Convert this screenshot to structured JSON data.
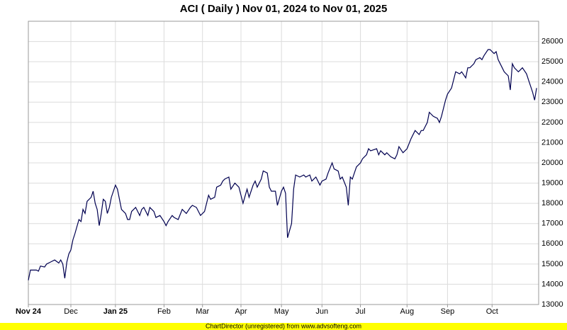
{
  "chart_data": {
    "type": "line",
    "title": "ACI ( Daily ) Nov 01, 2024 to Nov 01, 2025",
    "footer": "ChartDirector (unregistered) from www.advsofteng.com",
    "x": [
      0,
      1,
      4,
      5,
      6,
      8,
      9,
      11,
      13,
      15,
      16,
      17,
      18,
      19,
      20,
      21,
      22,
      23,
      25,
      26,
      27,
      28,
      29,
      31,
      32,
      33,
      34,
      35,
      36,
      37,
      38,
      39,
      40,
      41,
      43,
      44,
      46,
      48,
      49,
      50,
      51,
      53,
      54,
      55,
      56,
      57,
      59,
      60,
      62,
      63,
      65,
      67,
      68,
      69,
      71,
      72,
      74,
      76,
      78,
      80,
      81,
      83,
      85,
      87,
      89,
      90,
      92,
      93,
      95,
      96,
      97,
      99,
      100,
      102,
      104,
      106,
      108,
      109,
      111,
      112,
      113,
      115,
      116,
      118,
      119,
      120,
      122,
      123,
      125,
      126,
      127,
      128,
      130,
      131,
      132,
      134,
      136,
      137,
      139,
      140,
      142,
      144,
      145,
      147,
      148,
      150,
      151,
      153,
      154,
      155,
      157,
      158,
      159,
      160,
      162,
      164,
      165,
      167,
      168,
      169,
      172,
      173,
      174,
      176,
      177,
      179,
      181,
      182,
      183,
      185,
      187,
      189,
      191,
      193,
      194,
      195,
      197,
      198,
      200,
      202,
      203,
      204,
      206,
      207,
      209,
      210,
      211,
      213,
      214,
      216,
      217,
      218,
      220,
      221,
      223,
      224,
      225,
      227,
      228,
      230,
      231,
      232,
      234,
      235,
      237,
      238,
      239,
      240,
      242,
      243,
      244,
      246,
      247,
      249,
      250,
      251
    ],
    "values": [
      14200,
      14700,
      14700,
      14650,
      14900,
      14850,
      15000,
      15100,
      15200,
      15050,
      15200,
      15000,
      14300,
      15100,
      15500,
      15700,
      16200,
      16500,
      17200,
      17100,
      17700,
      17500,
      18100,
      18300,
      18600,
      18000,
      17700,
      16900,
      17500,
      18200,
      18100,
      17500,
      17800,
      18300,
      18900,
      18700,
      17700,
      17500,
      17200,
      17200,
      17600,
      17800,
      17600,
      17400,
      17700,
      17800,
      17400,
      17800,
      17600,
      17300,
      17400,
      17100,
      16900,
      17100,
      17400,
      17300,
      17200,
      17700,
      17500,
      17800,
      17900,
      17800,
      17400,
      17600,
      18400,
      18200,
      18300,
      18800,
      18900,
      19100,
      19200,
      19300,
      18700,
      19000,
      18800,
      18000,
      18700,
      18300,
      18900,
      19100,
      18800,
      19200,
      19600,
      19500,
      18800,
      18600,
      18600,
      17900,
      18600,
      18800,
      18500,
      16300,
      17000,
      18700,
      19400,
      19300,
      19400,
      19300,
      19400,
      19100,
      19300,
      18900,
      19100,
      19200,
      19500,
      20000,
      19700,
      19600,
      19200,
      19300,
      18800,
      17900,
      19300,
      19200,
      19800,
      20000,
      20200,
      20400,
      20700,
      20600,
      20700,
      20400,
      20600,
      20400,
      20500,
      20300,
      20200,
      20400,
      20800,
      20500,
      20700,
      21200,
      21600,
      21400,
      21600,
      21600,
      22000,
      22500,
      22300,
      22200,
      22000,
      22300,
      23100,
      23400,
      23700,
      24100,
      24500,
      24400,
      24500,
      24200,
      24700,
      24700,
      24900,
      25100,
      25200,
      25100,
      25300,
      25600,
      25600,
      25400,
      25500,
      25100,
      24700,
      24500,
      24300,
      23600,
      24900,
      24700,
      24500,
      24600,
      24700,
      24400,
      24100,
      23500,
      23100,
      23700
    ],
    "color": "#000050",
    "xlim": [
      0,
      252
    ],
    "xticks": [
      {
        "value": 0,
        "label": "Nov 24"
      },
      {
        "value": 21,
        "label": "Dec"
      },
      {
        "value": 43,
        "label": "Jan 25"
      },
      {
        "value": 67,
        "label": "Feb"
      },
      {
        "value": 86,
        "label": "Mar"
      },
      {
        "value": 105,
        "label": "Apr"
      },
      {
        "value": 125,
        "label": "May"
      },
      {
        "value": 145,
        "label": "Jun"
      },
      {
        "value": 164,
        "label": "Jul"
      },
      {
        "value": 187,
        "label": "Aug"
      },
      {
        "value": 207,
        "label": "Sep"
      },
      {
        "value": 229,
        "label": "Oct"
      }
    ],
    "ylim": [
      13000,
      27000
    ],
    "yticks": [
      13000,
      14000,
      15000,
      16000,
      17000,
      18000,
      19000,
      20000,
      21000,
      22000,
      23000,
      24000,
      25000,
      26000
    ],
    "grid": true
  }
}
